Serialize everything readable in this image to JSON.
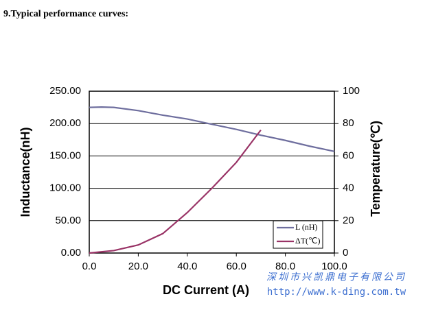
{
  "chart_data": {
    "type": "line",
    "title": "9.Typical performance curves:",
    "xlabel": "DC Current (A)",
    "ylabel": "Inductance(nH)",
    "y2label": "Temperature(℃)",
    "xlim": [
      0,
      100
    ],
    "xticks": [
      {
        "value": 0,
        "label": "0.0"
      },
      {
        "value": 20,
        "label": "20.0"
      },
      {
        "value": 40,
        "label": "40.0"
      },
      {
        "value": 60,
        "label": "60.0"
      },
      {
        "value": 80,
        "label": "80.0"
      },
      {
        "value": 100,
        "label": "100.0"
      }
    ],
    "ylim": [
      0,
      250
    ],
    "yticks": [
      {
        "value": 0,
        "label": "0.00"
      },
      {
        "value": 50,
        "label": "50.00"
      },
      {
        "value": 100,
        "label": "100.00"
      },
      {
        "value": 150,
        "label": "150.00"
      },
      {
        "value": 200,
        "label": "200.00"
      },
      {
        "value": 250,
        "label": "250.00"
      }
    ],
    "y2lim": [
      0,
      100
    ],
    "y2ticks": [
      0,
      20,
      40,
      60,
      80,
      100
    ],
    "grid": true,
    "legend": "lower-right",
    "series": [
      {
        "name": "L (nH)",
        "color": "#6e6e9e",
        "x": [
          0,
          5,
          10,
          20,
          30,
          40,
          50,
          60,
          70,
          80,
          90,
          100
        ],
        "values": [
          225,
          225.5,
          225,
          220,
          213,
          207,
          199,
          191,
          182,
          174,
          165,
          157
        ]
      },
      {
        "name": "ΔT(℃)",
        "color": "#993366",
        "axis": "y2",
        "x": [
          0,
          10,
          20,
          30,
          40,
          50,
          60,
          70
        ],
        "values": [
          0,
          1.5,
          5,
          12,
          25,
          40,
          56,
          76
        ]
      }
    ],
    "annotations": [
      "深圳市兴凯鼎电子有限公司",
      "http://www.k-ding.com.tw"
    ]
  }
}
